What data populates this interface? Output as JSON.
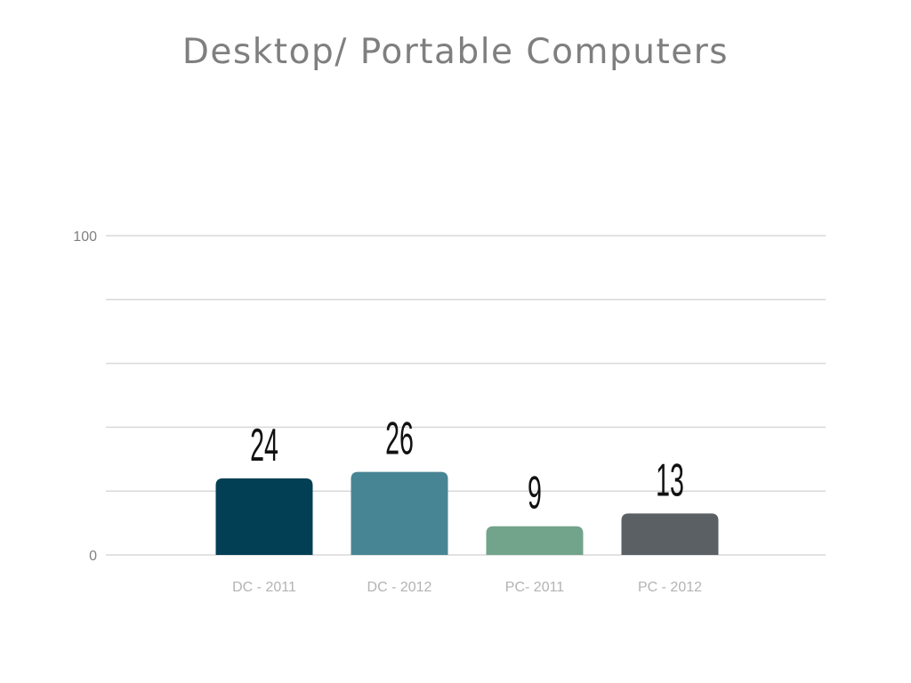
{
  "chart_data": {
    "type": "bar",
    "title": "Desktop/ Portable Computers",
    "categories": [
      "DC - 2011",
      "DC - 2012",
      "PC- 2011",
      "PC - 2012"
    ],
    "values": [
      24,
      26,
      9,
      13
    ],
    "colors": [
      "#033f54",
      "#488594",
      "#72a38b",
      "#5b6064"
    ],
    "ylim": [
      0,
      100
    ],
    "y_ticks_labeled": [
      "0",
      "100"
    ],
    "gridlines_count": 5,
    "grid": true,
    "legend": "none",
    "xlabel": "",
    "ylabel": ""
  }
}
